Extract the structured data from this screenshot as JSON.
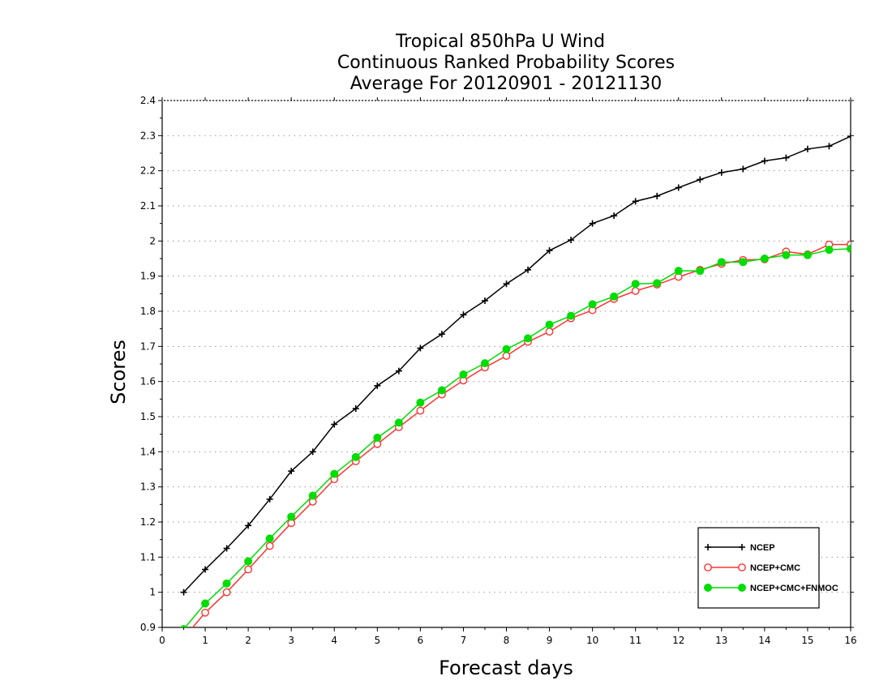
{
  "chart_data": {
    "type": "line",
    "title_lines": [
      "Tropical 850hPa U Wind",
      "Continuous Ranked Probability Scores",
      "Average For 20120901 - 20121130"
    ],
    "xlabel": "Forecast days",
    "ylabel": "Scores",
    "xlim": [
      0,
      16
    ],
    "ylim": [
      0.9,
      2.4
    ],
    "x_ticks": [
      0,
      1,
      2,
      3,
      4,
      5,
      6,
      7,
      8,
      9,
      10,
      11,
      12,
      13,
      14,
      15,
      16
    ],
    "y_ticks": [
      0.9,
      1,
      1.1,
      1.2,
      1.3,
      1.4,
      1.5,
      1.6,
      1.7,
      1.8,
      1.9,
      2,
      2.1,
      2.2,
      2.3,
      2.4
    ],
    "y_tick_labels": [
      "0.9",
      "1",
      "1.1",
      "1.2",
      "1.3",
      "1.4",
      "1.5",
      "1.6",
      "1.7",
      "1.8",
      "1.9",
      "2",
      "2.1",
      "2.2",
      "2.3",
      "2.4"
    ],
    "grid": "horizontal dotted",
    "legend_position": "bottom-right",
    "x": [
      0.5,
      1,
      1.5,
      2,
      2.5,
      3,
      3.5,
      4,
      4.5,
      5,
      5.5,
      6,
      6.5,
      7,
      7.5,
      8,
      8.5,
      9,
      9.5,
      10,
      10.5,
      11,
      11.5,
      12,
      12.5,
      13,
      13.5,
      14,
      14.5,
      15,
      15.5,
      16
    ],
    "series": [
      {
        "name": "NCEP",
        "color": "#000000",
        "marker": "plus",
        "values": [
          1.0,
          1.065,
          1.125,
          1.19,
          1.265,
          1.345,
          1.4,
          1.478,
          1.523,
          1.588,
          1.63,
          1.695,
          1.735,
          1.79,
          1.83,
          1.878,
          1.918,
          1.973,
          2.003,
          2.05,
          2.072,
          2.113,
          2.128,
          2.152,
          2.175,
          2.195,
          2.205,
          2.228,
          2.237,
          2.262,
          2.27,
          2.298
        ]
      },
      {
        "name": "NCEP+CMC",
        "color": "#ff3333",
        "marker": "open-circle",
        "values": [
          0.87,
          0.942,
          1.0,
          1.065,
          1.132,
          1.197,
          1.258,
          1.322,
          1.373,
          1.422,
          1.47,
          1.517,
          1.563,
          1.603,
          1.64,
          1.673,
          1.713,
          1.742,
          1.78,
          1.803,
          1.835,
          1.858,
          1.876,
          1.898,
          1.918,
          1.935,
          1.946,
          1.948,
          1.97,
          1.962,
          1.99,
          1.99
        ]
      },
      {
        "name": "NCEP+CMC+FNMOC",
        "color": "#00dd00",
        "marker": "filled-circle",
        "values": [
          0.895,
          0.968,
          1.025,
          1.088,
          1.153,
          1.215,
          1.275,
          1.337,
          1.385,
          1.44,
          1.483,
          1.54,
          1.575,
          1.62,
          1.652,
          1.692,
          1.723,
          1.762,
          1.787,
          1.82,
          1.842,
          1.878,
          1.88,
          1.915,
          1.915,
          1.94,
          1.94,
          1.95,
          1.96,
          1.96,
          1.975,
          1.978
        ]
      }
    ]
  }
}
